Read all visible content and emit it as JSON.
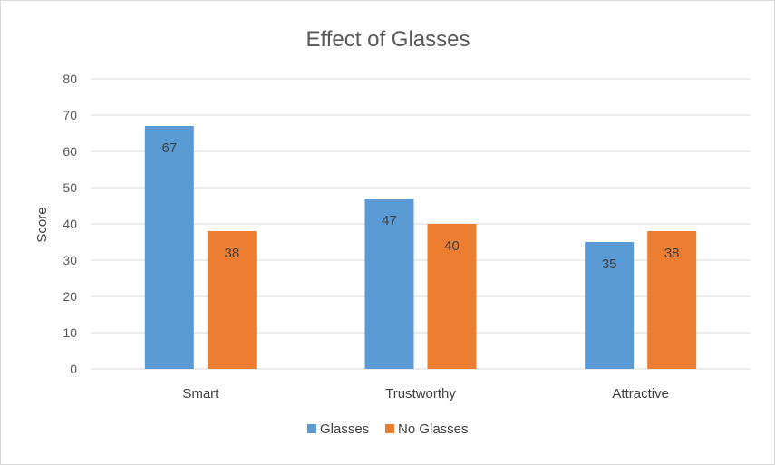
{
  "chart_data": {
    "type": "bar",
    "title": "Effect of Glasses",
    "xlabel": "",
    "ylabel": "Score",
    "categories": [
      "Smart",
      "Trustworthy",
      "Attractive"
    ],
    "series": [
      {
        "name": "Glasses",
        "values": [
          67,
          47,
          35
        ],
        "color": "#5b9bd5"
      },
      {
        "name": "No Glasses",
        "values": [
          38,
          40,
          38
        ],
        "color": "#ed7d31"
      }
    ],
    "ylim": [
      0,
      80
    ],
    "yticks": [
      0,
      10,
      20,
      30,
      40,
      50,
      60,
      70,
      80
    ],
    "grid": true,
    "legend_position": "bottom",
    "data_labels": true
  }
}
